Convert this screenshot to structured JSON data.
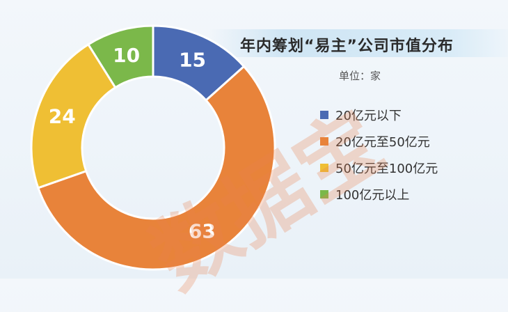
{
  "chart_data": {
    "type": "pie",
    "donut": true,
    "title": "年内筹划“易主”公司市值分布",
    "unit": "单位：家",
    "categories": [
      "20亿元以下",
      "20亿元至50亿元",
      "50亿元至100亿元",
      "100亿元以上"
    ],
    "values": [
      15,
      63,
      24,
      10
    ],
    "colors": [
      "#4a6ab3",
      "#e8833a",
      "#efbf34",
      "#7bb84a"
    ],
    "legend_position": "right",
    "start": "top",
    "direction": "clockwise"
  },
  "watermark": "数据宝"
}
